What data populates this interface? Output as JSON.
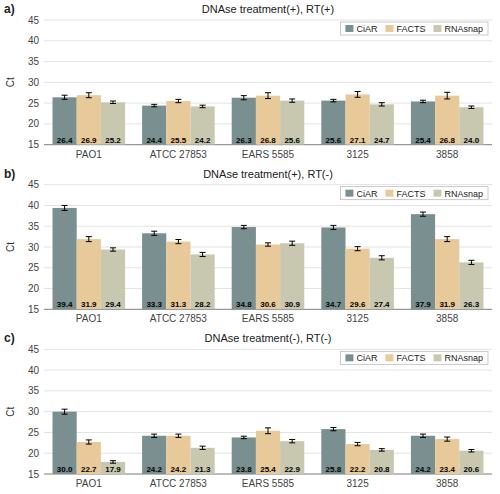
{
  "chart_data": [
    {
      "type": "bar",
      "title": "DNAse treatment(+), RT(+)",
      "annotations": [
        "a)"
      ],
      "y_label": "Ct",
      "categories": [
        "PAO1",
        "ATCC 27853",
        "EARS 5585",
        "3125",
        "3858"
      ],
      "series": [
        {
          "name": "CiAR",
          "color": "#7a8f8f",
          "values": [
            26.4,
            24.4,
            26.3,
            25.6,
            25.4
          ],
          "errors": [
            0.5,
            0.3,
            0.5,
            0.3,
            0.3
          ]
        },
        {
          "name": "FACTS",
          "color": "#e8c99a",
          "values": [
            26.9,
            25.5,
            26.8,
            27.1,
            26.8
          ],
          "errors": [
            0.6,
            0.4,
            0.7,
            0.7,
            0.8
          ]
        },
        {
          "name": "RNAsnap",
          "color": "#c8c8b0",
          "values": [
            25.2,
            24.2,
            25.6,
            24.7,
            24.0
          ],
          "value_labels": [
            "25.2",
            "24.2",
            "25.6",
            "24.7",
            "24.0"
          ],
          "errors": [
            0.3,
            0.3,
            0.4,
            0.4,
            0.3
          ]
        }
      ],
      "ylim": [
        15,
        45
      ],
      "yticks": [
        15,
        20,
        25,
        30,
        35,
        40,
        45
      ],
      "grid": true,
      "legend": "upper right",
      "data_labels": true
    },
    {
      "type": "bar",
      "title": "DNAse treatment(+), RT(-)",
      "annotations": [
        "b)"
      ],
      "y_label": "Ct",
      "categories": [
        "PAO1",
        "ATCC 27853",
        "EARS 5585",
        "3125",
        "3858"
      ],
      "series": [
        {
          "name": "CiAR",
          "color": "#7a8f8f",
          "values": [
            39.4,
            33.3,
            34.8,
            34.7,
            37.9
          ],
          "errors": [
            0.6,
            0.5,
            0.4,
            0.5,
            0.5
          ]
        },
        {
          "name": "FACTS",
          "color": "#e8c99a",
          "values": [
            31.9,
            31.3,
            30.6,
            29.6,
            31.9
          ],
          "errors": [
            0.6,
            0.5,
            0.4,
            0.5,
            0.6
          ]
        },
        {
          "name": "RNAsnap",
          "color": "#c8c8b0",
          "values": [
            29.4,
            28.2,
            30.9,
            27.4,
            26.3
          ],
          "errors": [
            0.4,
            0.5,
            0.5,
            0.5,
            0.5
          ]
        }
      ],
      "ylim": [
        15,
        45
      ],
      "yticks": [
        15,
        20,
        25,
        30,
        35,
        40,
        45
      ],
      "grid": true,
      "legend": "upper right",
      "data_labels": true
    },
    {
      "type": "bar",
      "title": "DNAse treatment(-), RT(-)",
      "annotations": [
        "c)"
      ],
      "y_label": "Ct",
      "categories": [
        "PAO1",
        "ATCC 27853",
        "EARS 5585",
        "3125",
        "3858"
      ],
      "series": [
        {
          "name": "CiAR",
          "color": "#7a8f8f",
          "values": [
            30.0,
            24.2,
            23.8,
            25.8,
            24.2
          ],
          "value_labels": [
            "30.0",
            "24.2",
            "23.8",
            "25.8",
            "24.2"
          ],
          "errors": [
            0.6,
            0.4,
            0.3,
            0.4,
            0.4
          ]
        },
        {
          "name": "FACTS",
          "color": "#e8c99a",
          "values": [
            22.7,
            24.2,
            25.4,
            22.2,
            23.4
          ],
          "errors": [
            0.5,
            0.4,
            0.7,
            0.4,
            0.5
          ]
        },
        {
          "name": "RNAsnap",
          "color": "#c8c8b0",
          "values": [
            17.9,
            21.3,
            22.9,
            20.8,
            20.6
          ],
          "errors": [
            0.3,
            0.4,
            0.4,
            0.3,
            0.3
          ]
        }
      ],
      "ylim": [
        15,
        45
      ],
      "yticks": [
        15,
        20,
        25,
        30,
        35,
        40,
        45
      ],
      "grid": true,
      "legend": "upper right",
      "data_labels": true
    }
  ]
}
